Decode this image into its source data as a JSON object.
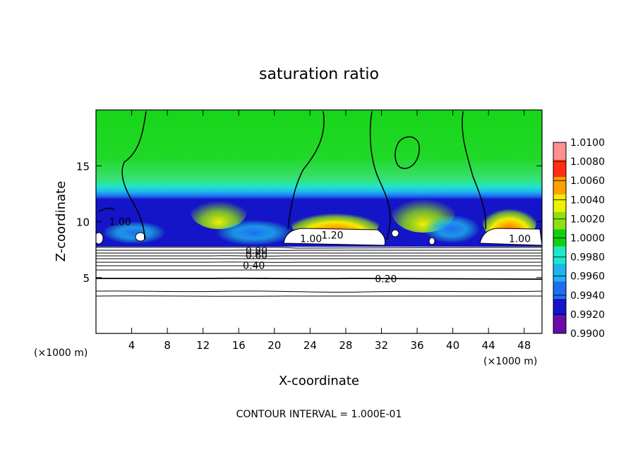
{
  "chart_data": {
    "type": "heatmap",
    "title": "saturation ratio",
    "xlabel": "X-coordinate",
    "ylabel": "Z-coordinate",
    "x_unit_left": "(×1000 m)",
    "x_unit_right": "(×1000 m)",
    "footer": "CONTOUR INTERVAL = 1.000E-01",
    "xlim": [
      0,
      50
    ],
    "ylim": [
      0,
      20
    ],
    "x_ticks": [
      4,
      8,
      12,
      16,
      20,
      24,
      28,
      32,
      36,
      40,
      44,
      48
    ],
    "x_tick_labels": [
      "4",
      "8",
      "12",
      "16",
      "20",
      "24",
      "28",
      "32",
      "36",
      "40",
      "44",
      "48"
    ],
    "y_ticks": [
      5,
      10,
      15
    ],
    "y_tick_labels": [
      "5",
      "10",
      "15"
    ],
    "colorbar": {
      "levels": [
        0.99,
        0.992,
        0.994,
        0.996,
        0.998,
        1.0,
        1.002,
        1.004,
        1.006,
        1.008,
        1.01
      ],
      "labels": [
        "0.9900",
        "0.9920",
        "0.9940",
        "0.9960",
        "0.9980",
        "1.0000",
        "1.0020",
        "1.0040",
        "1.0060",
        "1.0080",
        "1.0100"
      ],
      "colors": [
        "#6a0aa8",
        "#1414c8",
        "#1e6ef0",
        "#1eb4f0",
        "#1ee6c8",
        "#10d010",
        "#8ee010",
        "#f0f000",
        "#ffa000",
        "#ff3010",
        "#ff9090"
      ]
    },
    "contour_labels": [
      {
        "text": "1.00",
        "x": 2.7,
        "z": 10.0
      },
      {
        "text": "1.00",
        "x": 24.1,
        "z": 8.5
      },
      {
        "text": "1.20",
        "x": 26.5,
        "z": 8.8
      },
      {
        "text": "1.00",
        "x": 47.5,
        "z": 8.5
      },
      {
        "text": "0.80",
        "x": 18.0,
        "z": 7.4
      },
      {
        "text": "0.60",
        "x": 18.0,
        "z": 7.0
      },
      {
        "text": "0.40",
        "x": 17.7,
        "z": 6.1
      },
      {
        "text": "0.20",
        "x": 32.5,
        "z": 4.9
      }
    ]
  }
}
